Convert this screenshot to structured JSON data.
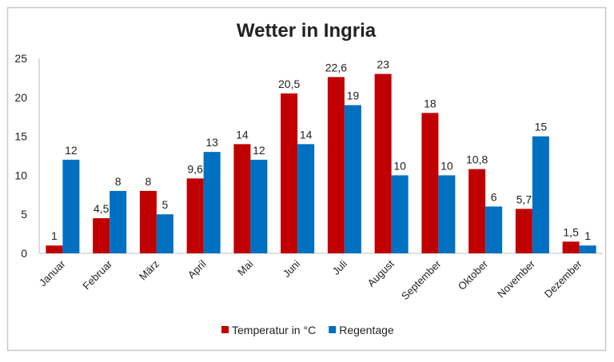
{
  "chart_data": {
    "type": "bar",
    "title": "Wetter in Ingria",
    "xlabel": "",
    "ylabel": "",
    "ylim": [
      0,
      25
    ],
    "yticks": [
      "0",
      "5",
      "10",
      "15",
      "20",
      "25"
    ],
    "grid": false,
    "legend": "bottom",
    "categories": [
      "Januar",
      "Februar",
      "März",
      "April",
      "Mai",
      "Juni",
      "Juli",
      "August",
      "September",
      "Oktober",
      "November",
      "Dezember"
    ],
    "series": [
      {
        "name": "Temperatur in °C",
        "color": "#C00000",
        "values": [
          1,
          4.5,
          8,
          9.6,
          14,
          20.5,
          22.6,
          23,
          18,
          10.8,
          5.7,
          1.5
        ],
        "labels": [
          "1",
          "4,5",
          "8",
          "9,6",
          "14",
          "20,5",
          "22,6",
          "23",
          "18",
          "10,8",
          "5,7",
          "1,5"
        ]
      },
      {
        "name": "Regentage",
        "color": "#0070C0",
        "values": [
          12,
          8,
          5,
          13,
          12,
          14,
          19,
          10,
          10,
          6,
          15,
          1
        ],
        "labels": [
          "12",
          "8",
          "5",
          "13",
          "12",
          "14",
          "19",
          "10",
          "10",
          "6",
          "15",
          "1"
        ]
      }
    ]
  }
}
